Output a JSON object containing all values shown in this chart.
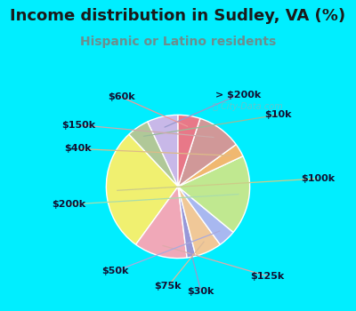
{
  "title": "Income distribution in Sudley, VA (%)",
  "subtitle": "Hispanic or Latino residents",
  "title_color": "#1a1a1a",
  "subtitle_color": "#6b8e8e",
  "fig_bg": "#00eeff",
  "chart_bg_top": "#e8f5f0",
  "chart_bg_bottom": "#f5fff5",
  "watermark": "ⓘ City-Data.com",
  "labels": [
    "> $200k",
    "$10k",
    "$100k",
    "$125k",
    "$30k",
    "$75k",
    "$50k",
    "$200k",
    "$40k",
    "$150k",
    "$60k"
  ],
  "sizes": [
    7,
    5,
    28,
    12,
    2,
    6,
    4,
    18,
    3,
    10,
    5
  ],
  "colors": [
    "#c8b8e8",
    "#b0c898",
    "#f0f070",
    "#f0a8b8",
    "#9898d8",
    "#f0c898",
    "#a8b8f0",
    "#c0e890",
    "#f0b870",
    "#d09898",
    "#e87888"
  ],
  "startangle": 90,
  "label_fontsize": 8,
  "title_fontsize": 13,
  "subtitle_fontsize": 10,
  "label_color": "#111133",
  "line_color": "#999999"
}
